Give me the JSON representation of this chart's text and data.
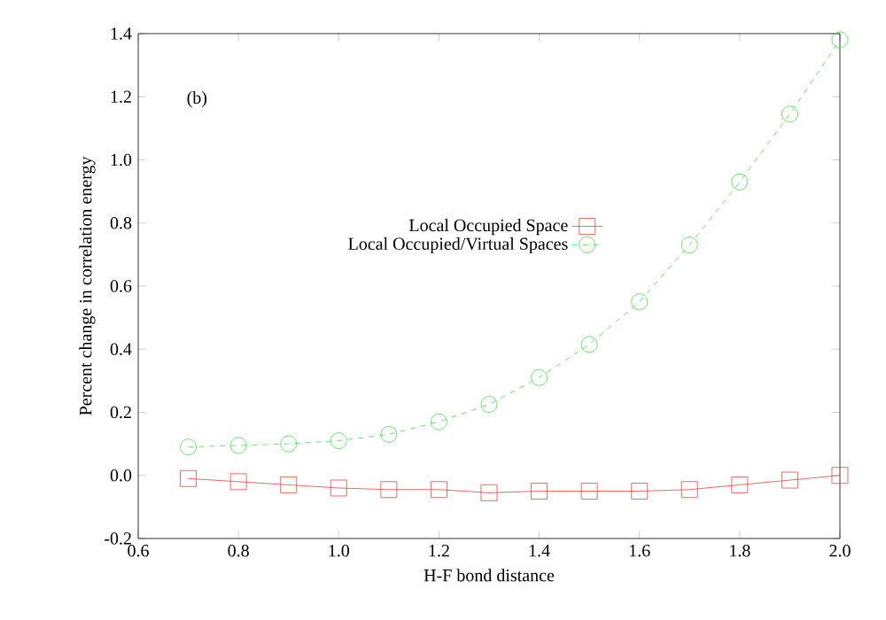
{
  "chart_data": {
    "type": "line",
    "xlabel": "H-F bond distance",
    "ylabel": "Percent change in correlation energy",
    "annotations": [
      "(b)"
    ],
    "x": [
      0.7,
      0.8,
      0.9,
      1.0,
      1.1,
      1.2,
      1.3,
      1.4,
      1.5,
      1.6,
      1.7,
      1.8,
      1.9,
      2.0
    ],
    "series": [
      {
        "name": "Local Occupied Space",
        "color": "#ee4444",
        "marker": "square",
        "line_style": "solid",
        "values": [
          -0.01,
          -0.02,
          -0.03,
          -0.04,
          -0.045,
          -0.045,
          -0.055,
          -0.05,
          -0.05,
          -0.05,
          -0.045,
          -0.03,
          -0.015,
          0.0
        ]
      },
      {
        "name": "Local Occupied/Virtual Spaces",
        "color": "#44dd44",
        "marker": "circle",
        "line_style": "dashed",
        "values": [
          0.09,
          0.095,
          0.1,
          0.11,
          0.13,
          0.17,
          0.225,
          0.31,
          0.415,
          0.55,
          0.73,
          0.93,
          1.145,
          1.38
        ]
      }
    ],
    "xlim": [
      0.6,
      2.0
    ],
    "ylim": [
      -0.2,
      1.4
    ],
    "xticks": [
      0.6,
      0.8,
      {
        "value": 1.0,
        "label": "1.0"
      },
      1.2,
      1.4,
      1.6,
      1.8,
      {
        "value": 2.0,
        "label": "2.0"
      }
    ],
    "yticks": [
      -0.2,
      {
        "value": 0.0,
        "label": "0.0"
      },
      0.2,
      0.4,
      0.6,
      0.8,
      {
        "value": 1.0,
        "label": "1.0"
      },
      1.2,
      1.4
    ],
    "grid": false,
    "legend": "center left"
  }
}
